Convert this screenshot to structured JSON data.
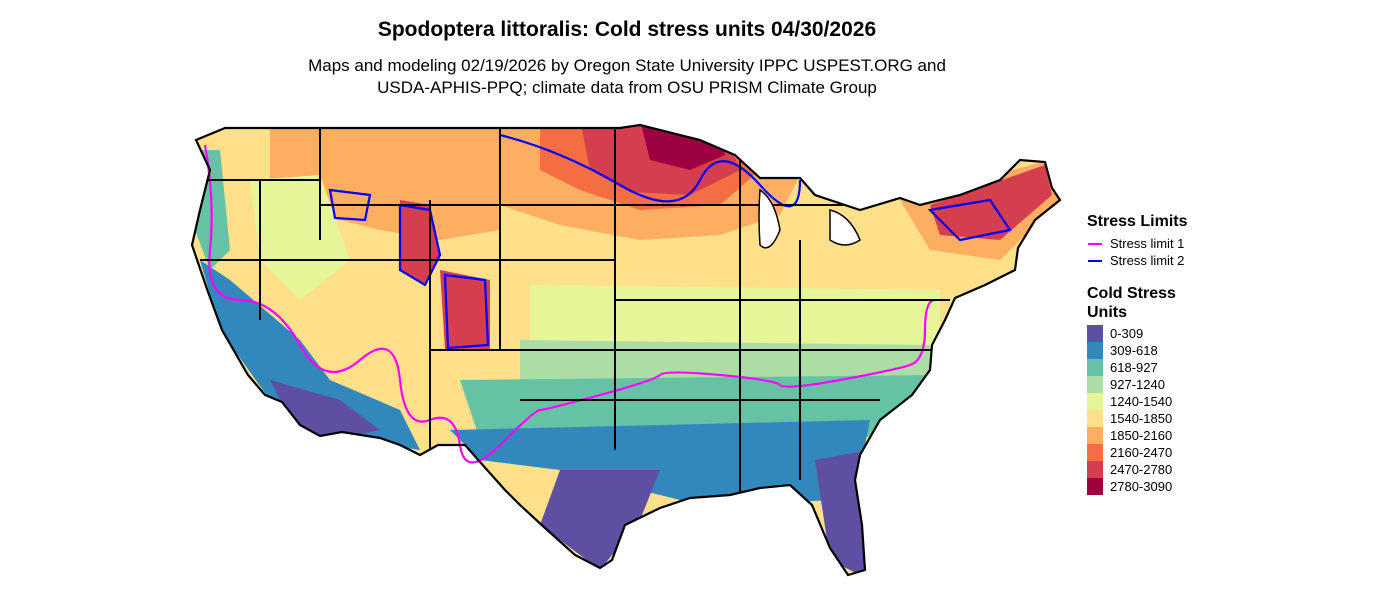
{
  "title": "Spodoptera littoralis: Cold stress units 04/30/2026",
  "subtitle": {
    "line1": "Maps and modeling 02/19/2026 by Oregon State University IPPC USPEST.ORG and",
    "line2": "USDA-APHIS-PPQ; climate data from OSU PRISM Climate Group"
  },
  "legend": {
    "stress_title": "Stress Limits",
    "stress_items": [
      {
        "label": "Stress limit 1",
        "color": "#ff00ff"
      },
      {
        "label": "Stress limit 2",
        "color": "#0000ff"
      }
    ],
    "csu_title": "Cold Stress Units",
    "csu_items": [
      {
        "label": "0-309",
        "color": "#5e4fa2"
      },
      {
        "label": "309-618",
        "color": "#3288bd"
      },
      {
        "label": "618-927",
        "color": "#66c2a5"
      },
      {
        "label": "927-1240",
        "color": "#abdda4"
      },
      {
        "label": "1240-1540",
        "color": "#e6f598"
      },
      {
        "label": "1540-1850",
        "color": "#fee08b"
      },
      {
        "label": "1850-2160",
        "color": "#fdae61"
      },
      {
        "label": "2160-2470",
        "color": "#f46d43"
      },
      {
        "label": "2470-2780",
        "color": "#d53e4f"
      },
      {
        "label": "2780-3090",
        "color": "#9e0142"
      }
    ]
  }
}
